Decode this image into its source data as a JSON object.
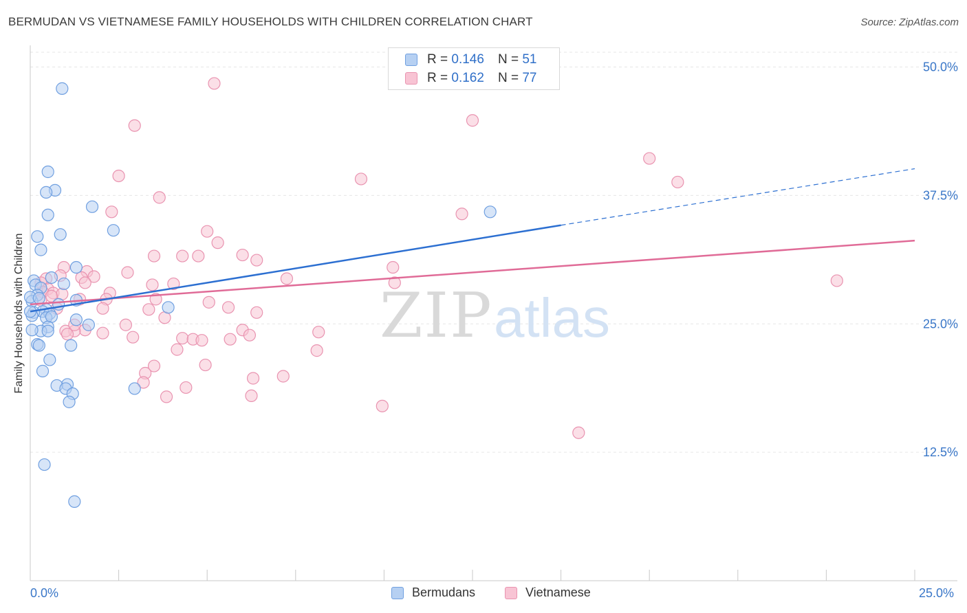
{
  "header": {
    "title": "BERMUDAN VS VIETNAMESE FAMILY HOUSEHOLDS WITH CHILDREN CORRELATION CHART",
    "source": "Source: ZipAtlas.com"
  },
  "watermark": {
    "zip": "ZIP",
    "atlas": "atlas"
  },
  "legend": {
    "rows": [
      {
        "r_label": "R =",
        "r_value": "0.146",
        "n_label": "N =",
        "n_value": "51"
      },
      {
        "r_label": "R =",
        "r_value": "0.162",
        "n_label": "N =",
        "n_value": "77"
      }
    ]
  },
  "chart_data": {
    "type": "scatter",
    "title": "BERMUDAN VS VIETNAMESE FAMILY HOUSEHOLDS WITH CHILDREN CORRELATION CHART",
    "xlabel": "",
    "ylabel": "Family Households with Children",
    "xlim": [
      0,
      25
    ],
    "ylim": [
      0,
      52
    ],
    "x_tick_labels": [
      "0.0%",
      "25.0%"
    ],
    "y_ticks": [
      12.5,
      25.0,
      37.5,
      50.0
    ],
    "y_tick_labels": [
      "12.5%",
      "25.0%",
      "37.5%",
      "50.0%"
    ],
    "grid": true,
    "legend_position": "top-center",
    "colors": {
      "Bermudans": {
        "fill": "#b6d0f2",
        "stroke": "#6f9fe0",
        "line": "#2c6fd1"
      },
      "Vietnamese": {
        "fill": "#f8c4d4",
        "stroke": "#e993b0",
        "line": "#e06b97"
      }
    },
    "series": [
      {
        "name": "Bermudans",
        "trend": {
          "x0": 0,
          "y0": 26.2,
          "x1": 15,
          "y1": 34.6,
          "dashed_to_x": 25,
          "dashed_to_y": 40.1
        },
        "points": [
          [
            0.9,
            47.9
          ],
          [
            0.5,
            39.8
          ],
          [
            0.7,
            38.0
          ],
          [
            0.45,
            37.8
          ],
          [
            1.75,
            36.4
          ],
          [
            13.0,
            35.9
          ],
          [
            0.5,
            35.6
          ],
          [
            2.35,
            34.1
          ],
          [
            0.85,
            33.7
          ],
          [
            0.2,
            33.5
          ],
          [
            0.3,
            32.2
          ],
          [
            1.3,
            30.5
          ],
          [
            0.6,
            29.5
          ],
          [
            0.1,
            29.2
          ],
          [
            0.95,
            28.9
          ],
          [
            0.15,
            28.8
          ],
          [
            0.3,
            28.5
          ],
          [
            0.2,
            27.8
          ],
          [
            1.3,
            27.3
          ],
          [
            0.05,
            27.2
          ],
          [
            0.8,
            26.9
          ],
          [
            3.9,
            26.6
          ],
          [
            0.45,
            26.4
          ],
          [
            0.35,
            26.2
          ],
          [
            0.1,
            26.1
          ],
          [
            0.55,
            26.0
          ],
          [
            0.05,
            25.8
          ],
          [
            0.45,
            25.6
          ],
          [
            1.3,
            25.4
          ],
          [
            0.6,
            25.7
          ],
          [
            1.65,
            24.9
          ],
          [
            0.5,
            24.7
          ],
          [
            0.3,
            24.3
          ],
          [
            0.05,
            24.4
          ],
          [
            0.5,
            24.3
          ],
          [
            0.2,
            23.0
          ],
          [
            1.15,
            22.9
          ],
          [
            0.25,
            22.9
          ],
          [
            0.55,
            21.5
          ],
          [
            0.35,
            20.4
          ],
          [
            1.05,
            19.1
          ],
          [
            0.75,
            19.0
          ],
          [
            2.95,
            18.7
          ],
          [
            1.0,
            18.7
          ],
          [
            1.2,
            18.2
          ],
          [
            1.1,
            17.4
          ],
          [
            0.4,
            11.3
          ],
          [
            1.25,
            7.7
          ],
          [
            0.0,
            27.6
          ],
          [
            0.0,
            26.2
          ],
          [
            0.25,
            27.5
          ]
        ]
      },
      {
        "name": "Vietnamese",
        "trend": {
          "x0": 0,
          "y0": 26.9,
          "x1": 25,
          "y1": 33.1
        },
        "points": [
          [
            5.2,
            48.4
          ],
          [
            12.5,
            44.8
          ],
          [
            2.95,
            44.3
          ],
          [
            17.5,
            41.1
          ],
          [
            2.5,
            39.4
          ],
          [
            9.35,
            39.1
          ],
          [
            18.3,
            38.8
          ],
          [
            3.65,
            37.3
          ],
          [
            2.3,
            35.9
          ],
          [
            12.2,
            35.7
          ],
          [
            5.0,
            34.0
          ],
          [
            5.3,
            32.9
          ],
          [
            6.0,
            31.7
          ],
          [
            3.5,
            31.6
          ],
          [
            4.3,
            31.6
          ],
          [
            4.75,
            31.6
          ],
          [
            6.4,
            31.2
          ],
          [
            10.25,
            30.5
          ],
          [
            0.95,
            30.5
          ],
          [
            1.6,
            30.1
          ],
          [
            2.75,
            30.0
          ],
          [
            0.85,
            29.7
          ],
          [
            1.8,
            29.6
          ],
          [
            1.45,
            29.5
          ],
          [
            7.25,
            29.4
          ],
          [
            0.45,
            29.4
          ],
          [
            1.55,
            29.0
          ],
          [
            0.3,
            29.0
          ],
          [
            10.3,
            29.0
          ],
          [
            22.8,
            29.2
          ],
          [
            4.05,
            28.9
          ],
          [
            3.45,
            28.8
          ],
          [
            0.5,
            28.4
          ],
          [
            0.35,
            28.1
          ],
          [
            0.65,
            28.0
          ],
          [
            2.25,
            28.0
          ],
          [
            0.9,
            27.9
          ],
          [
            0.6,
            27.7
          ],
          [
            1.4,
            27.4
          ],
          [
            2.15,
            27.4
          ],
          [
            3.55,
            27.4
          ],
          [
            5.05,
            27.1
          ],
          [
            5.6,
            26.6
          ],
          [
            3.35,
            26.4
          ],
          [
            2.05,
            26.5
          ],
          [
            0.3,
            27.3
          ],
          [
            0.75,
            26.5
          ],
          [
            6.4,
            26.1
          ],
          [
            3.8,
            25.6
          ],
          [
            2.7,
            24.9
          ],
          [
            6.0,
            24.4
          ],
          [
            1.55,
            24.4
          ],
          [
            8.15,
            24.2
          ],
          [
            1.25,
            24.3
          ],
          [
            1.0,
            24.3
          ],
          [
            1.05,
            24.0
          ],
          [
            2.05,
            24.1
          ],
          [
            6.2,
            23.9
          ],
          [
            4.3,
            23.6
          ],
          [
            4.6,
            23.5
          ],
          [
            2.9,
            23.7
          ],
          [
            4.85,
            23.4
          ],
          [
            5.65,
            23.5
          ],
          [
            4.15,
            22.5
          ],
          [
            8.1,
            22.4
          ],
          [
            3.5,
            20.9
          ],
          [
            4.95,
            21.0
          ],
          [
            3.25,
            20.2
          ],
          [
            6.3,
            19.7
          ],
          [
            3.2,
            19.3
          ],
          [
            4.4,
            18.8
          ],
          [
            3.85,
            17.9
          ],
          [
            6.25,
            18.0
          ],
          [
            9.95,
            17.0
          ],
          [
            15.5,
            14.4
          ],
          [
            7.15,
            19.9
          ],
          [
            1.25,
            24.9
          ]
        ]
      }
    ]
  },
  "bottom_legend": {
    "items": [
      "Bermudans",
      "Vietnamese"
    ]
  }
}
